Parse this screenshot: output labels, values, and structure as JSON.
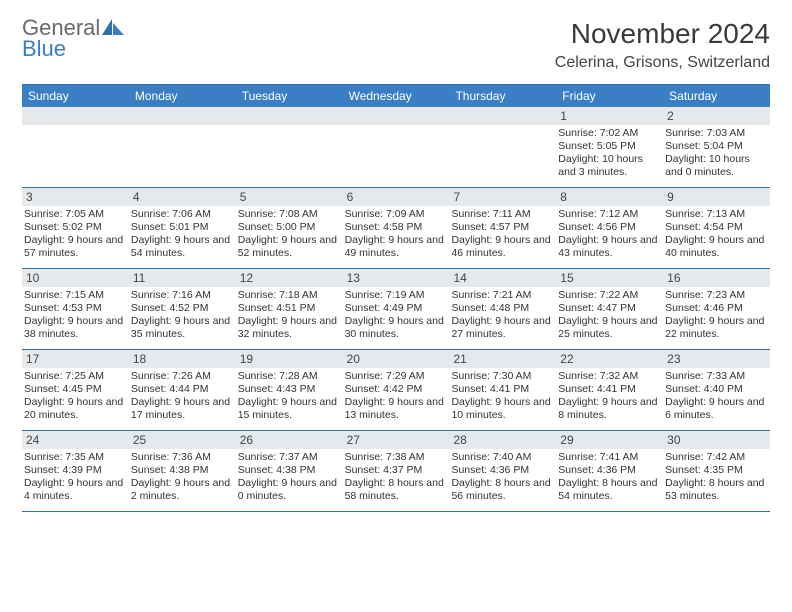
{
  "brand": {
    "word1": "General",
    "word2": "Blue"
  },
  "title": "November 2024",
  "location": "Celerina, Grisons, Switzerland",
  "colors": {
    "header_bg": "#3a7fc4",
    "rule": "#2f6fab",
    "daynum_bg": "#e6e9ec",
    "text": "#333333",
    "title_text": "#3a3a3a"
  },
  "dow": [
    "Sunday",
    "Monday",
    "Tuesday",
    "Wednesday",
    "Thursday",
    "Friday",
    "Saturday"
  ],
  "weeks": [
    [
      null,
      null,
      null,
      null,
      null,
      {
        "n": "1",
        "sunrise": "Sunrise: 7:02 AM",
        "sunset": "Sunset: 5:05 PM",
        "daylight": "Daylight: 10 hours and 3 minutes."
      },
      {
        "n": "2",
        "sunrise": "Sunrise: 7:03 AM",
        "sunset": "Sunset: 5:04 PM",
        "daylight": "Daylight: 10 hours and 0 minutes."
      }
    ],
    [
      {
        "n": "3",
        "sunrise": "Sunrise: 7:05 AM",
        "sunset": "Sunset: 5:02 PM",
        "daylight": "Daylight: 9 hours and 57 minutes."
      },
      {
        "n": "4",
        "sunrise": "Sunrise: 7:06 AM",
        "sunset": "Sunset: 5:01 PM",
        "daylight": "Daylight: 9 hours and 54 minutes."
      },
      {
        "n": "5",
        "sunrise": "Sunrise: 7:08 AM",
        "sunset": "Sunset: 5:00 PM",
        "daylight": "Daylight: 9 hours and 52 minutes."
      },
      {
        "n": "6",
        "sunrise": "Sunrise: 7:09 AM",
        "sunset": "Sunset: 4:58 PM",
        "daylight": "Daylight: 9 hours and 49 minutes."
      },
      {
        "n": "7",
        "sunrise": "Sunrise: 7:11 AM",
        "sunset": "Sunset: 4:57 PM",
        "daylight": "Daylight: 9 hours and 46 minutes."
      },
      {
        "n": "8",
        "sunrise": "Sunrise: 7:12 AM",
        "sunset": "Sunset: 4:56 PM",
        "daylight": "Daylight: 9 hours and 43 minutes."
      },
      {
        "n": "9",
        "sunrise": "Sunrise: 7:13 AM",
        "sunset": "Sunset: 4:54 PM",
        "daylight": "Daylight: 9 hours and 40 minutes."
      }
    ],
    [
      {
        "n": "10",
        "sunrise": "Sunrise: 7:15 AM",
        "sunset": "Sunset: 4:53 PM",
        "daylight": "Daylight: 9 hours and 38 minutes."
      },
      {
        "n": "11",
        "sunrise": "Sunrise: 7:16 AM",
        "sunset": "Sunset: 4:52 PM",
        "daylight": "Daylight: 9 hours and 35 minutes."
      },
      {
        "n": "12",
        "sunrise": "Sunrise: 7:18 AM",
        "sunset": "Sunset: 4:51 PM",
        "daylight": "Daylight: 9 hours and 32 minutes."
      },
      {
        "n": "13",
        "sunrise": "Sunrise: 7:19 AM",
        "sunset": "Sunset: 4:49 PM",
        "daylight": "Daylight: 9 hours and 30 minutes."
      },
      {
        "n": "14",
        "sunrise": "Sunrise: 7:21 AM",
        "sunset": "Sunset: 4:48 PM",
        "daylight": "Daylight: 9 hours and 27 minutes."
      },
      {
        "n": "15",
        "sunrise": "Sunrise: 7:22 AM",
        "sunset": "Sunset: 4:47 PM",
        "daylight": "Daylight: 9 hours and 25 minutes."
      },
      {
        "n": "16",
        "sunrise": "Sunrise: 7:23 AM",
        "sunset": "Sunset: 4:46 PM",
        "daylight": "Daylight: 9 hours and 22 minutes."
      }
    ],
    [
      {
        "n": "17",
        "sunrise": "Sunrise: 7:25 AM",
        "sunset": "Sunset: 4:45 PM",
        "daylight": "Daylight: 9 hours and 20 minutes."
      },
      {
        "n": "18",
        "sunrise": "Sunrise: 7:26 AM",
        "sunset": "Sunset: 4:44 PM",
        "daylight": "Daylight: 9 hours and 17 minutes."
      },
      {
        "n": "19",
        "sunrise": "Sunrise: 7:28 AM",
        "sunset": "Sunset: 4:43 PM",
        "daylight": "Daylight: 9 hours and 15 minutes."
      },
      {
        "n": "20",
        "sunrise": "Sunrise: 7:29 AM",
        "sunset": "Sunset: 4:42 PM",
        "daylight": "Daylight: 9 hours and 13 minutes."
      },
      {
        "n": "21",
        "sunrise": "Sunrise: 7:30 AM",
        "sunset": "Sunset: 4:41 PM",
        "daylight": "Daylight: 9 hours and 10 minutes."
      },
      {
        "n": "22",
        "sunrise": "Sunrise: 7:32 AM",
        "sunset": "Sunset: 4:41 PM",
        "daylight": "Daylight: 9 hours and 8 minutes."
      },
      {
        "n": "23",
        "sunrise": "Sunrise: 7:33 AM",
        "sunset": "Sunset: 4:40 PM",
        "daylight": "Daylight: 9 hours and 6 minutes."
      }
    ],
    [
      {
        "n": "24",
        "sunrise": "Sunrise: 7:35 AM",
        "sunset": "Sunset: 4:39 PM",
        "daylight": "Daylight: 9 hours and 4 minutes."
      },
      {
        "n": "25",
        "sunrise": "Sunrise: 7:36 AM",
        "sunset": "Sunset: 4:38 PM",
        "daylight": "Daylight: 9 hours and 2 minutes."
      },
      {
        "n": "26",
        "sunrise": "Sunrise: 7:37 AM",
        "sunset": "Sunset: 4:38 PM",
        "daylight": "Daylight: 9 hours and 0 minutes."
      },
      {
        "n": "27",
        "sunrise": "Sunrise: 7:38 AM",
        "sunset": "Sunset: 4:37 PM",
        "daylight": "Daylight: 8 hours and 58 minutes."
      },
      {
        "n": "28",
        "sunrise": "Sunrise: 7:40 AM",
        "sunset": "Sunset: 4:36 PM",
        "daylight": "Daylight: 8 hours and 56 minutes."
      },
      {
        "n": "29",
        "sunrise": "Sunrise: 7:41 AM",
        "sunset": "Sunset: 4:36 PM",
        "daylight": "Daylight: 8 hours and 54 minutes."
      },
      {
        "n": "30",
        "sunrise": "Sunrise: 7:42 AM",
        "sunset": "Sunset: 4:35 PM",
        "daylight": "Daylight: 8 hours and 53 minutes."
      }
    ]
  ]
}
